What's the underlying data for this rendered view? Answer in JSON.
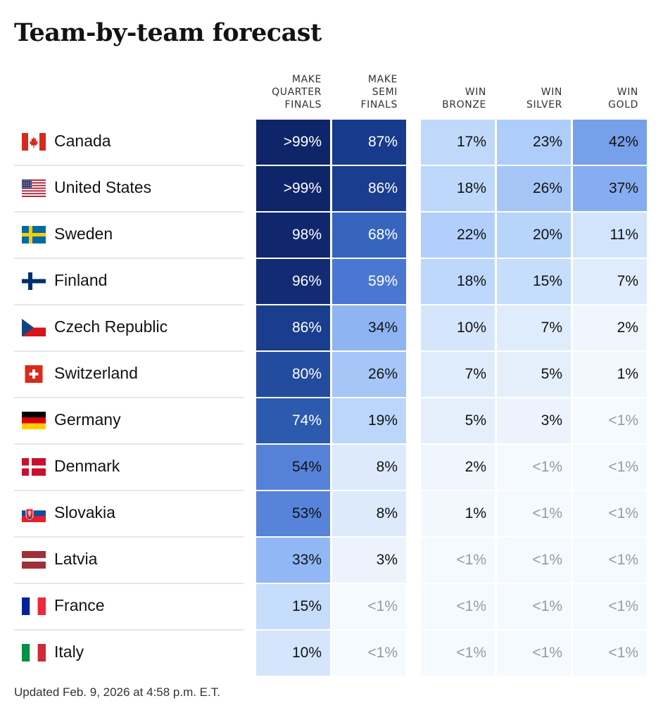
{
  "title": "Team-by-team forecast",
  "footer": "Updated Feb. 9, 2026 at 4:58 p.m. E.T.",
  "chart_data": {
    "type": "table",
    "title": "Team-by-team forecast",
    "columns": [
      {
        "key": "qf",
        "label": [
          "MAKE",
          "QUARTER",
          "FINALS"
        ]
      },
      {
        "key": "sf",
        "label": [
          "MAKE",
          "SEMI",
          "FINALS"
        ]
      },
      {
        "key": "bronze",
        "label": [
          "WIN",
          "BRONZE"
        ]
      },
      {
        "key": "silver",
        "label": [
          "WIN",
          "SILVER"
        ]
      },
      {
        "key": "gold",
        "label": [
          "WIN",
          "GOLD"
        ]
      }
    ],
    "rows": [
      {
        "team": "Canada",
        "flag": "canada-flag",
        "values": [
          ">99%",
          "87%",
          "17%",
          "23%",
          "42%"
        ],
        "numeric": [
          99.5,
          87,
          17,
          23,
          42
        ]
      },
      {
        "team": "United States",
        "flag": "united-states-flag",
        "values": [
          ">99%",
          "86%",
          "18%",
          "26%",
          "37%"
        ],
        "numeric": [
          99.5,
          86,
          18,
          26,
          37
        ]
      },
      {
        "team": "Sweden",
        "flag": "sweden-flag",
        "values": [
          "98%",
          "68%",
          "22%",
          "20%",
          "11%"
        ],
        "numeric": [
          98,
          68,
          22,
          20,
          11
        ]
      },
      {
        "team": "Finland",
        "flag": "finland-flag",
        "values": [
          "96%",
          "59%",
          "18%",
          "15%",
          "7%"
        ],
        "numeric": [
          96,
          59,
          18,
          15,
          7
        ]
      },
      {
        "team": "Czech Republic",
        "flag": "czech-republic-flag",
        "values": [
          "86%",
          "34%",
          "10%",
          "7%",
          "2%"
        ],
        "numeric": [
          86,
          34,
          10,
          7,
          2
        ]
      },
      {
        "team": "Switzerland",
        "flag": "switzerland-flag",
        "values": [
          "80%",
          "26%",
          "7%",
          "5%",
          "1%"
        ],
        "numeric": [
          80,
          26,
          7,
          5,
          1
        ]
      },
      {
        "team": "Germany",
        "flag": "germany-flag",
        "values": [
          "74%",
          "19%",
          "5%",
          "3%",
          "<1%"
        ],
        "numeric": [
          74,
          19,
          5,
          3,
          0.5
        ]
      },
      {
        "team": "Denmark",
        "flag": "denmark-flag",
        "values": [
          "54%",
          "8%",
          "2%",
          "<1%",
          "<1%"
        ],
        "numeric": [
          54,
          8,
          2,
          0.5,
          0.5
        ]
      },
      {
        "team": "Slovakia",
        "flag": "slovakia-flag",
        "values": [
          "53%",
          "8%",
          "1%",
          "<1%",
          "<1%"
        ],
        "numeric": [
          53,
          8,
          1,
          0.5,
          0.5
        ]
      },
      {
        "team": "Latvia",
        "flag": "latvia-flag",
        "values": [
          "33%",
          "3%",
          "<1%",
          "<1%",
          "<1%"
        ],
        "numeric": [
          33,
          3,
          0.5,
          0.5,
          0.5
        ]
      },
      {
        "team": "France",
        "flag": "france-flag",
        "values": [
          "15%",
          "<1%",
          "<1%",
          "<1%",
          "<1%"
        ],
        "numeric": [
          15,
          0.5,
          0.5,
          0.5,
          0.5
        ]
      },
      {
        "team": "Italy",
        "flag": "italy-flag",
        "values": [
          "10%",
          "<1%",
          "<1%",
          "<1%",
          "<1%"
        ],
        "numeric": [
          10,
          0.5,
          0.5,
          0.5,
          0.5
        ]
      }
    ]
  }
}
